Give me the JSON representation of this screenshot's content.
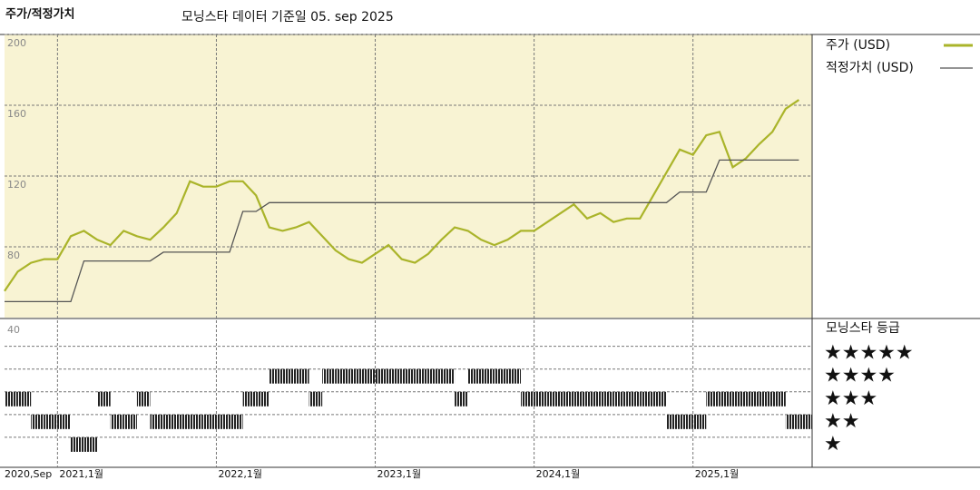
{
  "chart_data": [
    {
      "type": "line",
      "title": "주가/적정가치",
      "subtitle": "모닝스타 데이터 기준일 05. sep 2025",
      "x": [
        "2020-09",
        "2020-10",
        "2020-11",
        "2020-12",
        "2021-01",
        "2021-02",
        "2021-03",
        "2021-04",
        "2021-05",
        "2021-06",
        "2021-07",
        "2021-08",
        "2021-09",
        "2021-10",
        "2021-11",
        "2021-12",
        "2022-01",
        "2022-02",
        "2022-03",
        "2022-04",
        "2022-05",
        "2022-06",
        "2022-07",
        "2022-08",
        "2022-09",
        "2022-10",
        "2022-11",
        "2022-12",
        "2023-01",
        "2023-02",
        "2023-03",
        "2023-04",
        "2023-05",
        "2023-06",
        "2023-07",
        "2023-08",
        "2023-09",
        "2023-10",
        "2023-11",
        "2023-12",
        "2024-01",
        "2024-02",
        "2024-03",
        "2024-04",
        "2024-05",
        "2024-06",
        "2024-07",
        "2024-08",
        "2024-09",
        "2024-10",
        "2024-11",
        "2024-12",
        "2025-01",
        "2025-02",
        "2025-03",
        "2025-04",
        "2025-05",
        "2025-06",
        "2025-07",
        "2025-08",
        "2025-09"
      ],
      "series": [
        {
          "name": "주가 (USD)",
          "color": "#aab42a",
          "values": [
            55,
            66,
            71,
            73,
            73,
            86,
            89,
            84,
            81,
            89,
            86,
            84,
            91,
            99,
            117,
            114,
            114,
            117,
            117,
            109,
            91,
            89,
            91,
            94,
            86,
            78,
            73,
            71,
            76,
            81,
            73,
            71,
            76,
            84,
            91,
            89,
            84,
            81,
            84,
            89,
            89,
            94,
            99,
            104,
            96,
            99,
            94,
            96,
            96,
            109,
            122,
            135,
            132,
            143,
            145,
            125,
            130,
            138,
            145,
            158,
            163
          ]
        },
        {
          "name": "적정가치 (USD)",
          "color": "#555555",
          "values": [
            49,
            49,
            49,
            49,
            49,
            49,
            72,
            72,
            72,
            72,
            72,
            72,
            77,
            77,
            77,
            77,
            77,
            77,
            100,
            100,
            105,
            105,
            105,
            105,
            105,
            105,
            105,
            105,
            105,
            105,
            105,
            105,
            105,
            105,
            105,
            105,
            105,
            105,
            105,
            105,
            105,
            105,
            105,
            105,
            105,
            105,
            105,
            105,
            105,
            105,
            105,
            111,
            111,
            111,
            129,
            129,
            129,
            129,
            129,
            129,
            129
          ]
        }
      ],
      "xlim": [
        "2020-09",
        "2025-10"
      ],
      "xticks": [
        {
          "value": "2020-09",
          "label": "2020,Sep"
        },
        {
          "value": "2021-01",
          "label": "2021,1월"
        },
        {
          "value": "2022-01",
          "label": "2022,1월"
        },
        {
          "value": "2023-01",
          "label": "2023,1월"
        },
        {
          "value": "2024-01",
          "label": "2024,1월"
        },
        {
          "value": "2025-01",
          "label": "2025,1월"
        }
      ],
      "ylim": [
        40,
        200
      ],
      "yticks": [
        80,
        120,
        160,
        200
      ],
      "grid": true,
      "legend": "right"
    },
    {
      "type": "strip",
      "title": "모닝스타 등급",
      "corner_label": "40",
      "x": [
        "2020-09",
        "2020-10",
        "2020-11",
        "2020-12",
        "2021-01",
        "2021-02",
        "2021-03",
        "2021-04",
        "2021-05",
        "2021-06",
        "2021-07",
        "2021-08",
        "2021-09",
        "2021-10",
        "2021-11",
        "2021-12",
        "2022-01",
        "2022-02",
        "2022-03",
        "2022-04",
        "2022-05",
        "2022-06",
        "2022-07",
        "2022-08",
        "2022-09",
        "2022-10",
        "2022-11",
        "2022-12",
        "2023-01",
        "2023-02",
        "2023-03",
        "2023-04",
        "2023-05",
        "2023-06",
        "2023-07",
        "2023-08",
        "2023-09",
        "2023-10",
        "2023-11",
        "2023-12",
        "2024-01",
        "2024-02",
        "2024-03",
        "2024-04",
        "2024-05",
        "2024-06",
        "2024-07",
        "2024-08",
        "2024-09",
        "2024-10",
        "2024-11",
        "2024-12",
        "2025-01",
        "2025-02",
        "2025-03",
        "2025-04",
        "2025-05",
        "2025-06",
        "2025-07",
        "2025-08",
        "2025-09"
      ],
      "values": [
        3,
        3,
        2,
        2,
        2,
        1,
        1,
        3,
        2,
        2,
        3,
        2,
        2,
        2,
        2,
        2,
        2,
        2,
        3,
        3,
        4,
        4,
        4,
        3,
        4,
        4,
        4,
        4,
        4,
        4,
        4,
        4,
        4,
        4,
        3,
        4,
        4,
        4,
        4,
        3,
        3,
        3,
        3,
        3,
        3,
        3,
        3,
        3,
        3,
        3,
        2,
        2,
        2,
        3,
        3,
        3,
        3,
        3,
        3,
        2,
        2
      ],
      "color": "#222222",
      "xlim": [
        "2020-09",
        "2025-10"
      ],
      "ylim": [
        0,
        6.5
      ],
      "yticks": [
        {
          "value": 5,
          "label": "★★★★★"
        },
        {
          "value": 4,
          "label": "★★★★"
        },
        {
          "value": 3,
          "label": "★★★"
        },
        {
          "value": 2,
          "label": "★★"
        },
        {
          "value": 1,
          "label": "★"
        }
      ]
    }
  ]
}
